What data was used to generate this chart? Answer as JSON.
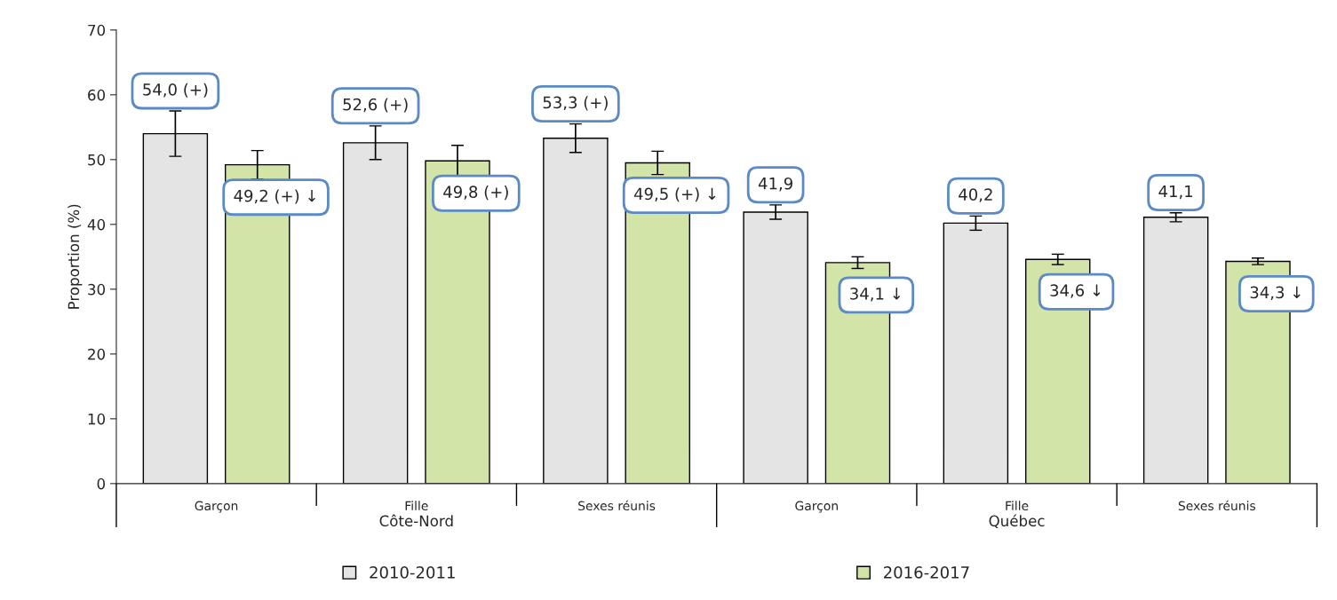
{
  "chart_data": {
    "type": "bar",
    "ylabel": "Proportion (%)",
    "categories": [
      "Garçon",
      "Fille",
      "Sexes réunis",
      "Garçon",
      "Fille",
      "Sexes réunis"
    ],
    "series": [
      {
        "name": "2010-2011",
        "color": "#e4e4e4",
        "values": [
          54.0,
          52.6,
          53.3,
          41.9,
          40.2,
          41.1
        ],
        "errors": [
          3.5,
          2.6,
          2.2,
          1.1,
          1.1,
          0.7
        ],
        "value_labels": [
          "54,0 (+)",
          "52,6 (+)",
          "53,3 (+)",
          "41,9",
          "40,2",
          "41,1"
        ]
      },
      {
        "name": "2016-2017",
        "color": "#d3e4a8",
        "values": [
          49.2,
          49.8,
          49.5,
          34.1,
          34.6,
          34.3
        ],
        "errors": [
          2.2,
          2.4,
          1.8,
          0.9,
          0.8,
          0.5
        ],
        "value_labels": [
          "49,2 (+) ↓",
          "49,8 (+)",
          "49,5 (+) ↓",
          "34,1 ↓",
          "34,6 ↓",
          "34,3 ↓"
        ]
      }
    ],
    "annotations": [
      "Côte-Nord",
      "Québec"
    ],
    "ylim": [
      0,
      70
    ],
    "yticks": [
      0,
      10,
      20,
      30,
      40,
      50,
      60,
      70
    ],
    "grid": false,
    "legend": "bottom"
  }
}
